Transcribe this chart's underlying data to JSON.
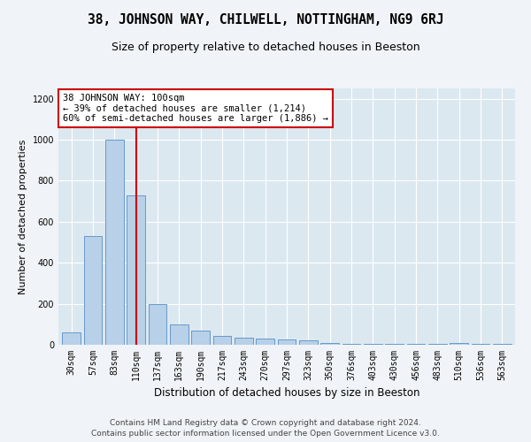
{
  "title1": "38, JOHNSON WAY, CHILWELL, NOTTINGHAM, NG9 6RJ",
  "title2": "Size of property relative to detached houses in Beeston",
  "xlabel": "Distribution of detached houses by size in Beeston",
  "ylabel": "Number of detached properties",
  "categories": [
    "30sqm",
    "57sqm",
    "83sqm",
    "110sqm",
    "137sqm",
    "163sqm",
    "190sqm",
    "217sqm",
    "243sqm",
    "270sqm",
    "297sqm",
    "323sqm",
    "350sqm",
    "376sqm",
    "403sqm",
    "430sqm",
    "456sqm",
    "483sqm",
    "510sqm",
    "536sqm",
    "563sqm"
  ],
  "values": [
    60,
    530,
    1000,
    730,
    200,
    100,
    70,
    45,
    35,
    30,
    25,
    20,
    10,
    5,
    5,
    3,
    3,
    3,
    8,
    3,
    5
  ],
  "bar_color": "#b8d0e8",
  "bar_edge_color": "#6699cc",
  "vline_x_index": 3,
  "vline_color": "#cc0000",
  "annotation_text": "38 JOHNSON WAY: 100sqm\n← 39% of detached houses are smaller (1,214)\n60% of semi-detached houses are larger (1,886) →",
  "annotation_box_facecolor": "#ffffff",
  "annotation_box_edgecolor": "#cc0000",
  "fig_facecolor": "#f0f4f8",
  "ax_facecolor": "#dce8f0",
  "grid_color": "#ffffff",
  "ylim": [
    0,
    1250
  ],
  "yticks": [
    0,
    200,
    400,
    600,
    800,
    1000,
    1200
  ],
  "footer": "Contains HM Land Registry data © Crown copyright and database right 2024.\nContains public sector information licensed under the Open Government Licence v3.0.",
  "title1_fontsize": 10.5,
  "title2_fontsize": 9,
  "ylabel_fontsize": 8,
  "xlabel_fontsize": 8.5,
  "tick_fontsize": 7,
  "annotation_fontsize": 7.5,
  "footer_fontsize": 6.5
}
